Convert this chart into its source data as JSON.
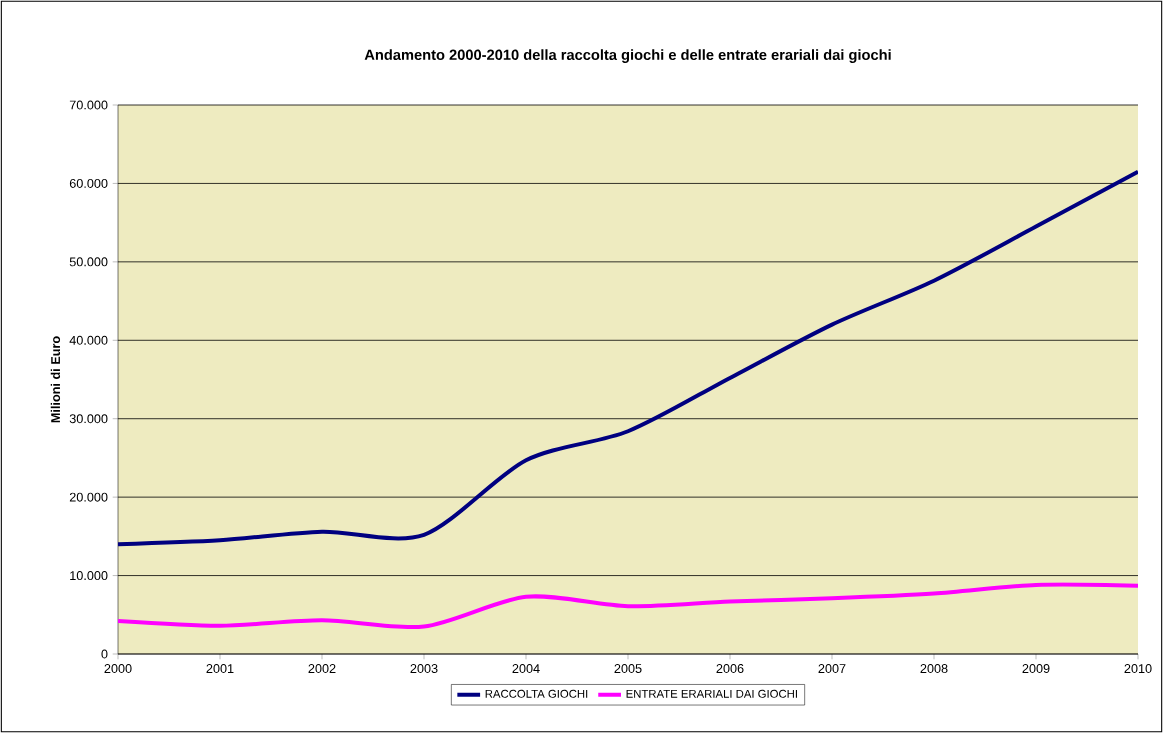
{
  "chart_data": {
    "type": "line",
    "title": "Andamento 2000-2010 della raccolta giochi e delle entrate erariali dai giochi",
    "ylabel": "Milioni di Euro",
    "x": [
      2000,
      2001,
      2002,
      2003,
      2004,
      2005,
      2006,
      2007,
      2008,
      2009,
      2010
    ],
    "series": [
      {
        "name": "RACCOLTA GIOCHI",
        "color": "#000080",
        "values": [
          14000,
          14500,
          15600,
          15200,
          24700,
          28400,
          35200,
          42000,
          47600,
          54500,
          61500
        ]
      },
      {
        "name": "ENTRATE ERARIALI DAI GIOCHI",
        "color": "#ff00ff",
        "values": [
          4200,
          3600,
          4300,
          3500,
          7300,
          6100,
          6700,
          7100,
          7700,
          8800,
          8700
        ]
      }
    ],
    "xlim": [
      2000,
      2010
    ],
    "xticks": [
      2000,
      2001,
      2002,
      2003,
      2004,
      2005,
      2006,
      2007,
      2008,
      2009,
      2010
    ],
    "ylim": [
      0,
      70000
    ],
    "yticks": [
      0,
      {
        "value": 10000,
        "label": "10.000"
      },
      {
        "value": 20000,
        "label": "20.000"
      },
      {
        "value": 30000,
        "label": "30.000"
      },
      {
        "value": 40000,
        "label": "40.000"
      },
      {
        "value": 50000,
        "label": "50.000"
      },
      {
        "value": 60000,
        "label": "60.000"
      },
      {
        "value": 70000,
        "label": "70.000"
      }
    ],
    "grid": "y",
    "legend": "bottom",
    "marker": "none",
    "line_style": "solid"
  }
}
